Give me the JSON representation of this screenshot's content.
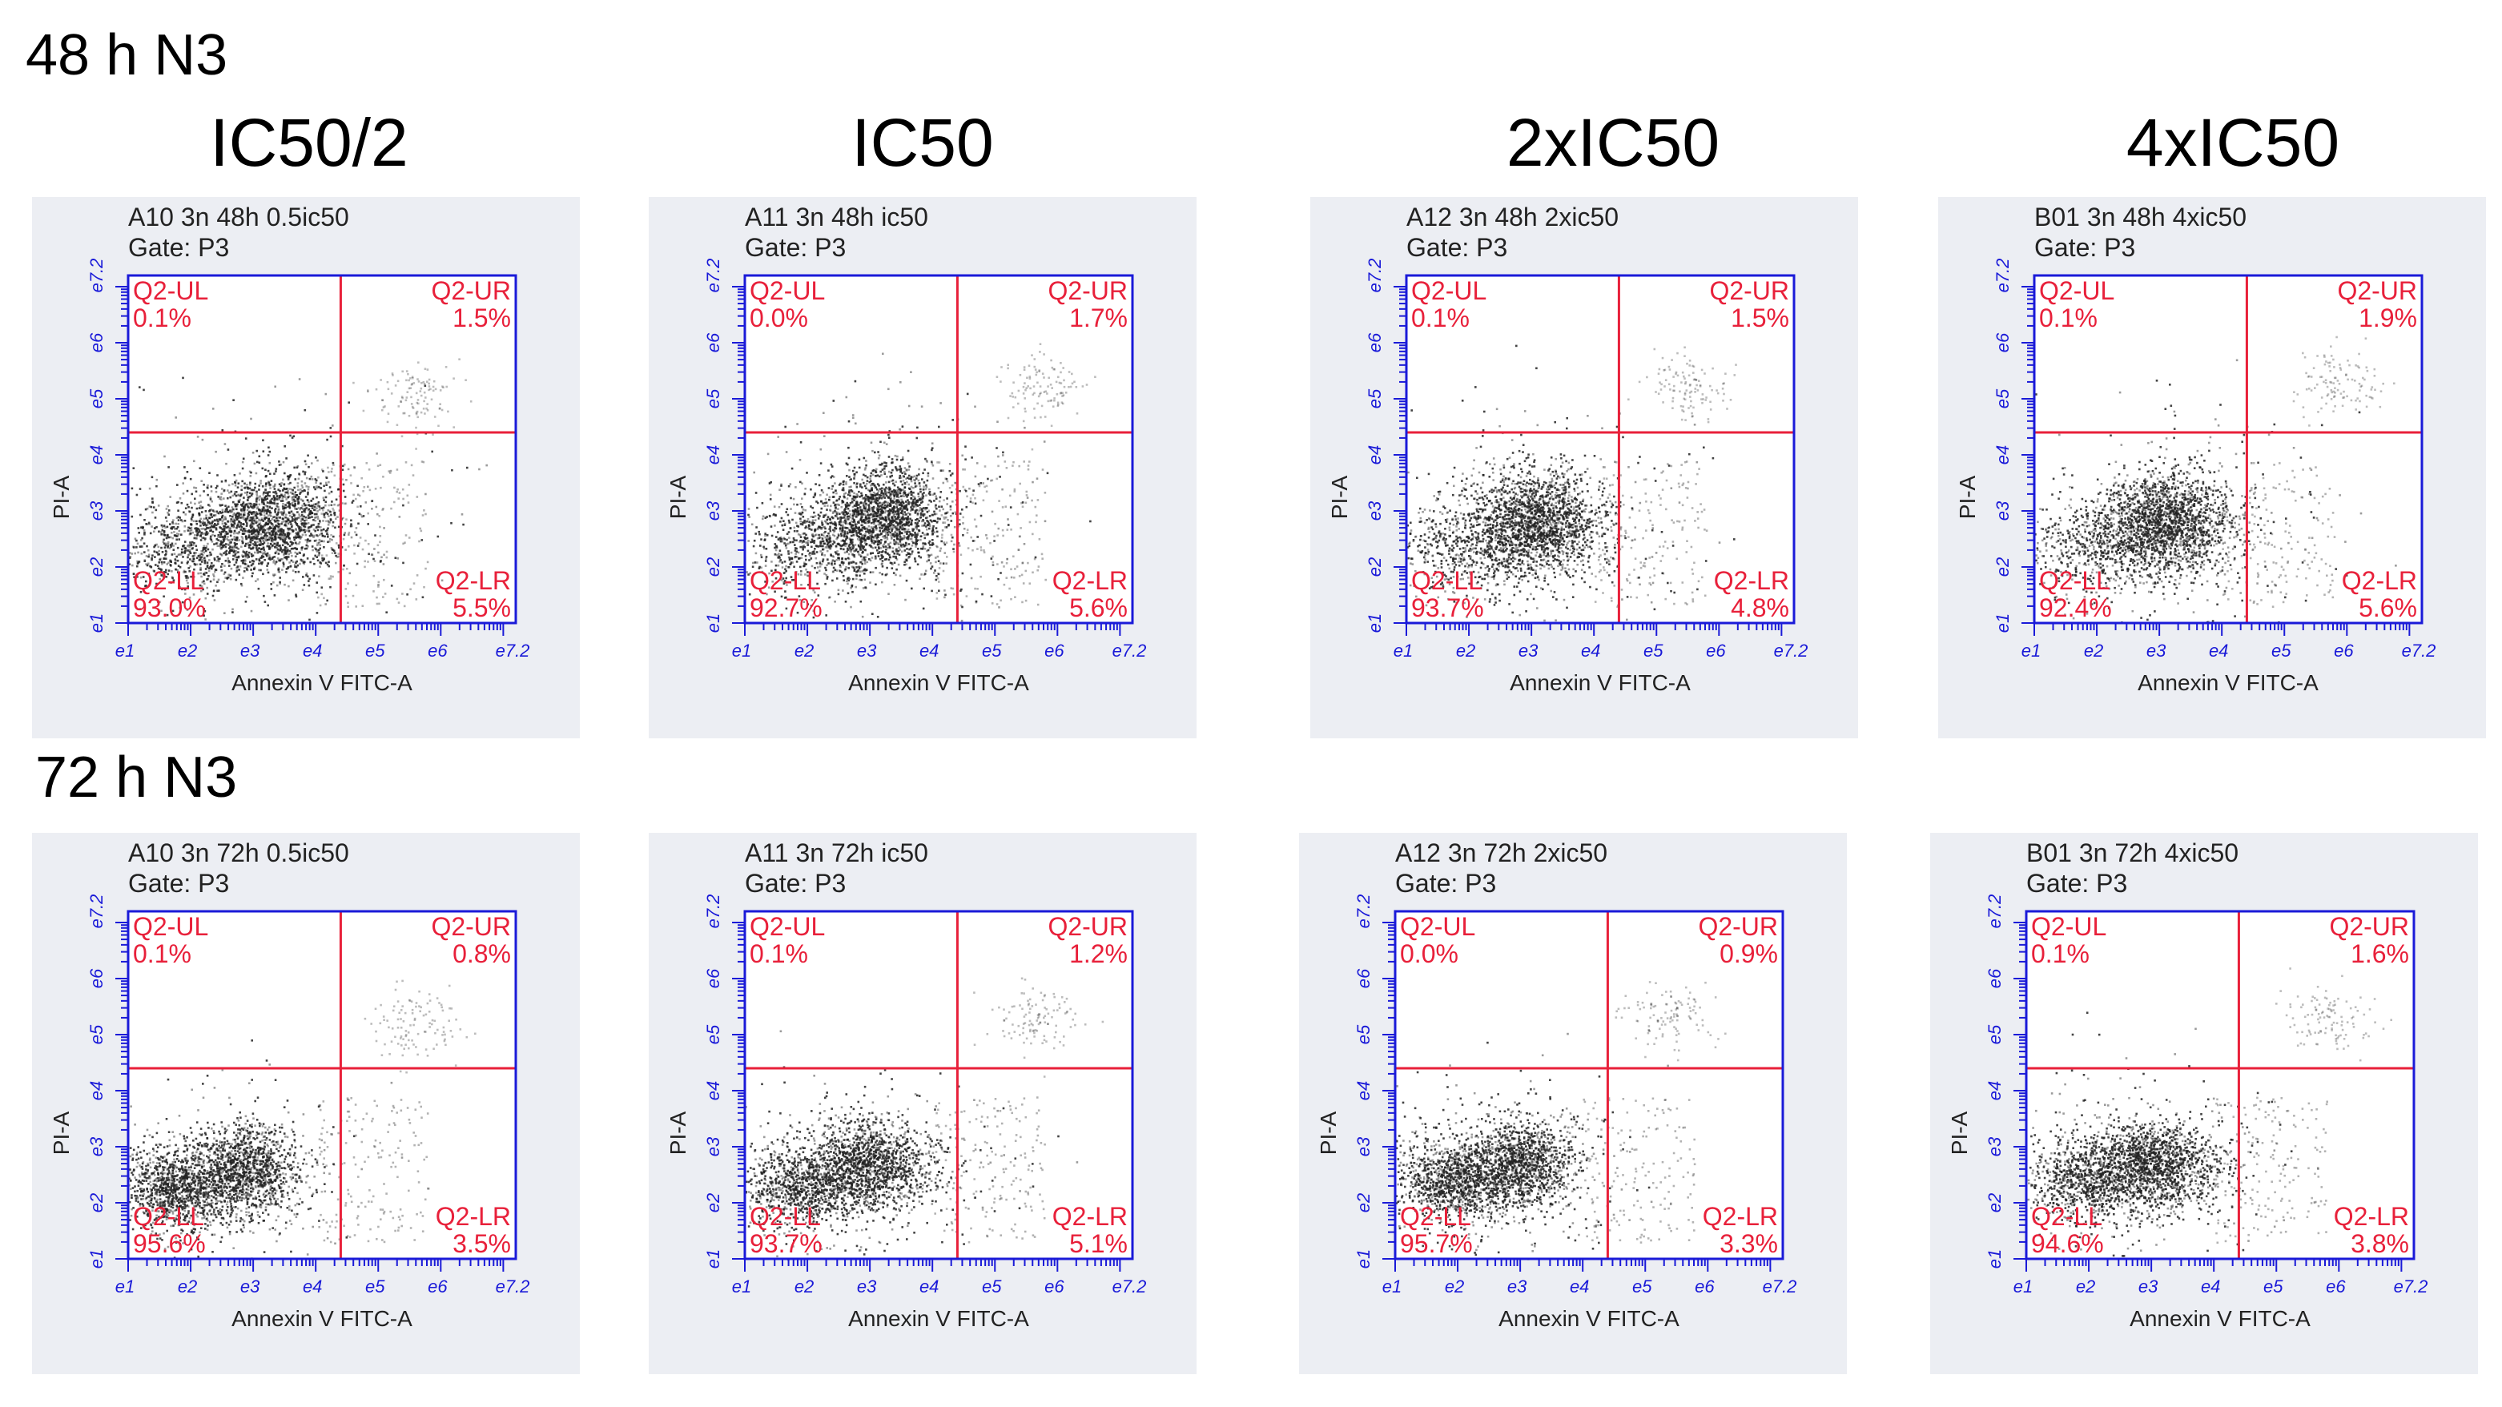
{
  "rows": [
    {
      "label": "48 h  N3",
      "hours": 48
    },
    {
      "label": "72 h  N3",
      "hours": 72
    }
  ],
  "columns": [
    "IC50/2",
    "IC50",
    "2xIC50",
    "4xIC50"
  ],
  "colors": {
    "axis": "#1a1ad8",
    "gate": "#e8203a",
    "dots": "#222222",
    "panel_bg": "#eceef3"
  },
  "chart_data": [
    {
      "type": "scatter",
      "title": "A10 3n 48h 0.5ic50",
      "gate": "Gate: P3",
      "xlabel": "Annexin V FITC-A",
      "ylabel": "PI-A",
      "xlim": [
        1,
        7.2
      ],
      "ylim": [
        1,
        7.2
      ],
      "x_ticks": [
        "e1",
        "e2",
        "e3",
        "e4",
        "e5",
        "e6",
        "e7.2"
      ],
      "y_ticks": [
        "e1",
        "e2",
        "e3",
        "e4",
        "e5",
        "e6",
        "e7.2"
      ],
      "quadrants": {
        "UL": {
          "label": "Q2-UL",
          "value": "0.1%"
        },
        "UR": {
          "label": "Q2-UR",
          "value": "1.5%"
        },
        "LL": {
          "label": "Q2-LL",
          "value": "93.0%"
        },
        "LR": {
          "label": "Q2-LR",
          "value": "5.5%"
        }
      },
      "gate_x": 4.4,
      "gate_y": 4.4,
      "clusters": [
        {
          "x": 3.3,
          "y": 2.8,
          "sx": 0.55,
          "sy": 0.45,
          "weight": 0.7
        },
        {
          "x": 2.0,
          "y": 2.4,
          "sx": 0.6,
          "sy": 0.4,
          "weight": 0.3
        }
      ],
      "ur_cluster": {
        "x": 5.6,
        "y": 5.1,
        "sx": 0.35,
        "sy": 0.3
      }
    },
    {
      "type": "scatter",
      "title": "A11 3n 48h ic50",
      "gate": "Gate: P3",
      "xlabel": "Annexin V FITC-A",
      "ylabel": "PI-A",
      "xlim": [
        1,
        7.2
      ],
      "ylim": [
        1,
        7.2
      ],
      "x_ticks": [
        "e1",
        "e2",
        "e3",
        "e4",
        "e5",
        "e6",
        "e7.2"
      ],
      "y_ticks": [
        "e1",
        "e2",
        "e3",
        "e4",
        "e5",
        "e6",
        "e7.2"
      ],
      "quadrants": {
        "UL": {
          "label": "Q2-UL",
          "value": "0.0%"
        },
        "UR": {
          "label": "Q2-UR",
          "value": "1.7%"
        },
        "LL": {
          "label": "Q2-LL",
          "value": "92.7%"
        },
        "LR": {
          "label": "Q2-LR",
          "value": "5.6%"
        }
      },
      "gate_x": 4.4,
      "gate_y": 4.4,
      "clusters": [
        {
          "x": 3.2,
          "y": 2.9,
          "sx": 0.5,
          "sy": 0.45,
          "weight": 0.75
        },
        {
          "x": 2.1,
          "y": 2.4,
          "sx": 0.6,
          "sy": 0.4,
          "weight": 0.25
        }
      ],
      "ur_cluster": {
        "x": 5.7,
        "y": 5.2,
        "sx": 0.35,
        "sy": 0.3
      }
    },
    {
      "type": "scatter",
      "title": "A12 3n 48h 2xic50",
      "gate": "Gate: P3",
      "xlabel": "Annexin V FITC-A",
      "ylabel": "PI-A",
      "xlim": [
        1,
        7.2
      ],
      "ylim": [
        1,
        7.2
      ],
      "x_ticks": [
        "e1",
        "e2",
        "e3",
        "e4",
        "e5",
        "e6",
        "e7.2"
      ],
      "y_ticks": [
        "e1",
        "e2",
        "e3",
        "e4",
        "e5",
        "e6",
        "e7.2"
      ],
      "quadrants": {
        "UL": {
          "label": "Q2-UL",
          "value": "0.1%"
        },
        "UR": {
          "label": "Q2-UR",
          "value": "1.5%"
        },
        "LL": {
          "label": "Q2-LL",
          "value": "93.7%"
        },
        "LR": {
          "label": "Q2-LR",
          "value": "4.8%"
        }
      },
      "gate_x": 4.4,
      "gate_y": 4.4,
      "clusters": [
        {
          "x": 3.1,
          "y": 2.8,
          "sx": 0.5,
          "sy": 0.45,
          "weight": 0.75
        },
        {
          "x": 2.0,
          "y": 2.4,
          "sx": 0.6,
          "sy": 0.4,
          "weight": 0.25
        }
      ],
      "ur_cluster": {
        "x": 5.5,
        "y": 5.2,
        "sx": 0.35,
        "sy": 0.3
      }
    },
    {
      "type": "scatter",
      "title": "B01 3n 48h 4xic50",
      "gate": "Gate: P3",
      "xlabel": "Annexin V FITC-A",
      "ylabel": "PI-A",
      "xlim": [
        1,
        7.2
      ],
      "ylim": [
        1,
        7.2
      ],
      "x_ticks": [
        "e1",
        "e2",
        "e3",
        "e4",
        "e5",
        "e6",
        "e7.2"
      ],
      "y_ticks": [
        "e1",
        "e2",
        "e3",
        "e4",
        "e5",
        "e6",
        "e7.2"
      ],
      "quadrants": {
        "UL": {
          "label": "Q2-UL",
          "value": "0.1%"
        },
        "UR": {
          "label": "Q2-UR",
          "value": "1.9%"
        },
        "LL": {
          "label": "Q2-LL",
          "value": "92.4%"
        },
        "LR": {
          "label": "Q2-LR",
          "value": "5.6%"
        }
      },
      "gate_x": 4.4,
      "gate_y": 4.4,
      "clusters": [
        {
          "x": 3.1,
          "y": 2.8,
          "sx": 0.5,
          "sy": 0.45,
          "weight": 0.75
        },
        {
          "x": 2.1,
          "y": 2.4,
          "sx": 0.6,
          "sy": 0.4,
          "weight": 0.25
        }
      ],
      "ur_cluster": {
        "x": 5.8,
        "y": 5.3,
        "sx": 0.35,
        "sy": 0.3
      }
    },
    {
      "type": "scatter",
      "title": "A10 3n 72h 0.5ic50",
      "gate": "Gate: P3",
      "xlabel": "Annexin V FITC-A",
      "ylabel": "PI-A",
      "xlim": [
        1,
        7.2
      ],
      "ylim": [
        1,
        7.2
      ],
      "x_ticks": [
        "e1",
        "e2",
        "e3",
        "e4",
        "e5",
        "e6",
        "e7.2"
      ],
      "y_ticks": [
        "e1",
        "e2",
        "e3",
        "e4",
        "e5",
        "e6",
        "e7.2"
      ],
      "quadrants": {
        "UL": {
          "label": "Q2-UL",
          "value": "0.1%"
        },
        "UR": {
          "label": "Q2-UR",
          "value": "0.8%"
        },
        "LL": {
          "label": "Q2-LL",
          "value": "95.6%"
        },
        "LR": {
          "label": "Q2-LR",
          "value": "3.5%"
        }
      },
      "gate_x": 4.4,
      "gate_y": 4.4,
      "clusters": [
        {
          "x": 2.9,
          "y": 2.6,
          "sx": 0.4,
          "sy": 0.4,
          "weight": 0.5
        },
        {
          "x": 1.8,
          "y": 2.3,
          "sx": 0.45,
          "sy": 0.35,
          "weight": 0.5
        }
      ],
      "ur_cluster": {
        "x": 5.6,
        "y": 5.2,
        "sx": 0.35,
        "sy": 0.3
      }
    },
    {
      "type": "scatter",
      "title": "A11 3n 72h ic50",
      "gate": "Gate: P3",
      "xlabel": "Annexin V FITC-A",
      "ylabel": "PI-A",
      "xlim": [
        1,
        7.2
      ],
      "ylim": [
        1,
        7.2
      ],
      "x_ticks": [
        "e1",
        "e2",
        "e3",
        "e4",
        "e5",
        "e6",
        "e7.2"
      ],
      "y_ticks": [
        "e1",
        "e2",
        "e3",
        "e4",
        "e5",
        "e6",
        "e7.2"
      ],
      "quadrants": {
        "UL": {
          "label": "Q2-UL",
          "value": "0.1%"
        },
        "UR": {
          "label": "Q2-UR",
          "value": "1.2%"
        },
        "LL": {
          "label": "Q2-LL",
          "value": "93.7%"
        },
        "LR": {
          "label": "Q2-LR",
          "value": "5.1%"
        }
      },
      "gate_x": 4.4,
      "gate_y": 4.4,
      "clusters": [
        {
          "x": 3.0,
          "y": 2.7,
          "sx": 0.5,
          "sy": 0.4,
          "weight": 0.6
        },
        {
          "x": 1.9,
          "y": 2.3,
          "sx": 0.5,
          "sy": 0.35,
          "weight": 0.4
        }
      ],
      "ur_cluster": {
        "x": 5.6,
        "y": 5.3,
        "sx": 0.35,
        "sy": 0.3
      }
    },
    {
      "type": "scatter",
      "title": "A12 3n 72h 2xic50",
      "gate": "Gate: P3",
      "xlabel": "Annexin V FITC-A",
      "ylabel": "PI-A",
      "xlim": [
        1,
        7.2
      ],
      "ylim": [
        1,
        7.2
      ],
      "x_ticks": [
        "e1",
        "e2",
        "e3",
        "e4",
        "e5",
        "e6",
        "e7.2"
      ],
      "y_ticks": [
        "e1",
        "e2",
        "e3",
        "e4",
        "e5",
        "e6",
        "e7.2"
      ],
      "quadrants": {
        "UL": {
          "label": "Q2-UL",
          "value": "0.0%"
        },
        "UR": {
          "label": "Q2-UR",
          "value": "0.9%"
        },
        "LL": {
          "label": "Q2-LL",
          "value": "95.7%"
        },
        "LR": {
          "label": "Q2-LR",
          "value": "3.3%"
        }
      },
      "gate_x": 4.4,
      "gate_y": 4.4,
      "clusters": [
        {
          "x": 3.0,
          "y": 2.7,
          "sx": 0.45,
          "sy": 0.4,
          "weight": 0.55
        },
        {
          "x": 1.9,
          "y": 2.4,
          "sx": 0.45,
          "sy": 0.35,
          "weight": 0.45
        }
      ],
      "ur_cluster": {
        "x": 5.4,
        "y": 5.3,
        "sx": 0.35,
        "sy": 0.3
      }
    },
    {
      "type": "scatter",
      "title": "B01 3n 72h 4xic50",
      "gate": "Gate: P3",
      "xlabel": "Annexin V FITC-A",
      "ylabel": "PI-A",
      "xlim": [
        1,
        7.2
      ],
      "ylim": [
        1,
        7.2
      ],
      "x_ticks": [
        "e1",
        "e2",
        "e3",
        "e4",
        "e5",
        "e6",
        "e7.2"
      ],
      "y_ticks": [
        "e1",
        "e2",
        "e3",
        "e4",
        "e5",
        "e6",
        "e7.2"
      ],
      "quadrants": {
        "UL": {
          "label": "Q2-UL",
          "value": "0.1%"
        },
        "UR": {
          "label": "Q2-UR",
          "value": "1.6%"
        },
        "LL": {
          "label": "Q2-LL",
          "value": "94.6%"
        },
        "LR": {
          "label": "Q2-LR",
          "value": "3.8%"
        }
      },
      "gate_x": 4.4,
      "gate_y": 4.4,
      "clusters": [
        {
          "x": 3.1,
          "y": 2.7,
          "sx": 0.5,
          "sy": 0.4,
          "weight": 0.6
        },
        {
          "x": 2.0,
          "y": 2.4,
          "sx": 0.5,
          "sy": 0.35,
          "weight": 0.4
        }
      ],
      "ur_cluster": {
        "x": 5.8,
        "y": 5.3,
        "sx": 0.35,
        "sy": 0.3
      }
    }
  ]
}
